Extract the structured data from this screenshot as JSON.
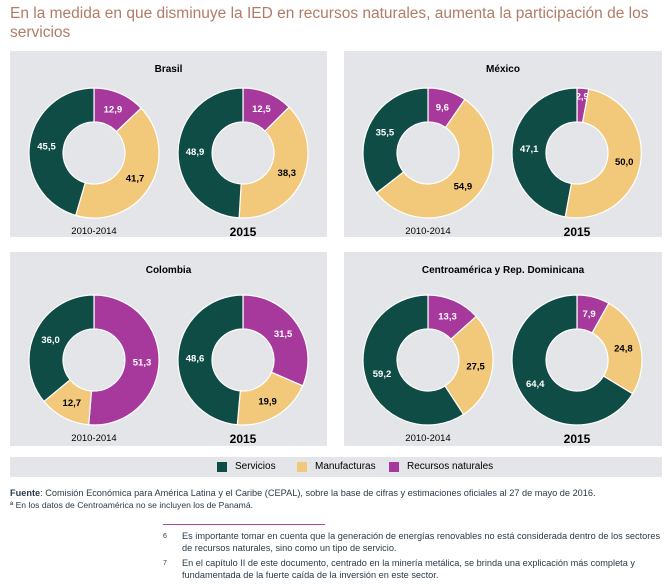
{
  "title": "En la medida en que disminuye la IED en recursos naturales, aumenta la participación de los servicios",
  "colors": {
    "servicios": "#0e4c45",
    "manufacturas": "#f2c97a",
    "recursos": "#a8399c",
    "panel_bg": "#e3e5e8"
  },
  "chart_data": [
    {
      "type": "pie",
      "title": "Brasil",
      "donuts": [
        {
          "label": "2010-2014",
          "servicios": 45.5,
          "manufacturas": 41.7,
          "recursos": 12.9,
          "text": {
            "servicios": "45,5",
            "manufacturas": "41,7",
            "recursos": "12,9"
          }
        },
        {
          "label": "2015",
          "servicios": 48.9,
          "manufacturas": 38.3,
          "recursos": 12.5,
          "text": {
            "servicios": "48,9",
            "manufacturas": "38,3",
            "recursos": "12,5"
          }
        }
      ]
    },
    {
      "type": "pie",
      "title": "México",
      "donuts": [
        {
          "label": "2010-2014",
          "servicios": 35.5,
          "manufacturas": 54.9,
          "recursos": 9.6,
          "text": {
            "servicios": "35,5",
            "manufacturas": "54,9",
            "recursos": "9,6"
          }
        },
        {
          "label": "2015",
          "servicios": 47.1,
          "manufacturas": 50.0,
          "recursos": 2.9,
          "text": {
            "servicios": "47,1",
            "manufacturas": "50,0",
            "recursos": "2,9"
          }
        }
      ]
    },
    {
      "type": "pie",
      "title": "Colombia",
      "donuts": [
        {
          "label": "2010-2014",
          "servicios": 36.0,
          "manufacturas": 12.7,
          "recursos": 51.3,
          "text": {
            "servicios": "36,0",
            "manufacturas": "12,7",
            "recursos": "51,3"
          }
        },
        {
          "label": "2015",
          "servicios": 48.6,
          "manufacturas": 19.9,
          "recursos": 31.5,
          "text": {
            "servicios": "48,6",
            "manufacturas": "19,9",
            "recursos": "31,5"
          }
        }
      ]
    },
    {
      "type": "pie",
      "title": "Centroamérica y Rep. Dominicana",
      "donuts": [
        {
          "label": "2010-2014",
          "servicios": 59.2,
          "manufacturas": 27.5,
          "recursos": 13.3,
          "text": {
            "servicios": "59,2",
            "manufacturas": "27,5",
            "recursos": "13,3"
          }
        },
        {
          "label": "2015",
          "servicios": 64.4,
          "manufacturas": 24.8,
          "recursos": 7.9,
          "text": {
            "servicios": "64,4",
            "manufacturas": "24,8",
            "recursos": "7,9"
          }
        }
      ]
    }
  ],
  "legend": {
    "servicios": "Servicios",
    "manufacturas": "Manufacturas",
    "recursos": "Recursos naturales"
  },
  "source": {
    "label": "Fuente",
    "text": ": Comisión Económica para América Latina y el Caribe (CEPAL), sobre la base de cifras y estimaciones oficiales al 27 de mayo de 2016."
  },
  "note": "ª En los datos de Centroamérica no se incluyen los de Panamá.",
  "footnotes": [
    {
      "num": "6",
      "text": "Es importante tomar en cuenta que la generación de energías renovables no está considerada dentro de los sectores de recursos naturales, sino como un tipo de servicio."
    },
    {
      "num": "7",
      "text": "En el capítulo II de este documento, centrado en la minería metálica, se brinda una explicación más completa y fundamentada de la fuerte caída de la inversión en este sector."
    }
  ]
}
